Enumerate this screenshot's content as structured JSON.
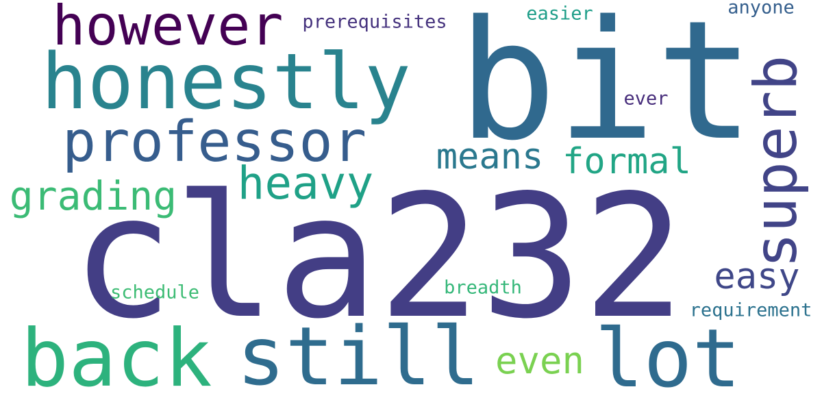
{
  "words": [
    {
      "key": "cla232",
      "text": "cla232",
      "color": "#433e85"
    },
    {
      "key": "bit",
      "text": "bit",
      "color": "#30698e"
    },
    {
      "key": "honestly",
      "text": "honestly",
      "color": "#29838e"
    },
    {
      "key": "however",
      "text": "however",
      "color": "#440154"
    },
    {
      "key": "professor",
      "text": "professor",
      "color": "#365d8d"
    },
    {
      "key": "back",
      "text": "back",
      "color": "#2db27d"
    },
    {
      "key": "still",
      "text": "still",
      "color": "#2f6c8e"
    },
    {
      "key": "lot",
      "text": "lot",
      "color": "#2f6b8e"
    },
    {
      "key": "superb",
      "text": "superb",
      "color": "#414487"
    },
    {
      "key": "heavy",
      "text": "heavy",
      "color": "#1fa187"
    },
    {
      "key": "grading",
      "text": "grading",
      "color": "#3bbb75"
    },
    {
      "key": "means",
      "text": "means",
      "color": "#2a788e"
    },
    {
      "key": "formal",
      "text": "formal",
      "color": "#21a585"
    },
    {
      "key": "easy",
      "text": "easy",
      "color": "#3f4788"
    },
    {
      "key": "even",
      "text": "even",
      "color": "#7ad151"
    },
    {
      "key": "prerequisites",
      "text": "prerequisites",
      "color": "#46337e"
    },
    {
      "key": "easier",
      "text": "easier",
      "color": "#1f9e89"
    },
    {
      "key": "anyone",
      "text": "anyone",
      "color": "#355f8d"
    },
    {
      "key": "ever",
      "text": "ever",
      "color": "#472d7b"
    },
    {
      "key": "schedule",
      "text": "schedule",
      "color": "#3dbc74"
    },
    {
      "key": "breadth",
      "text": "breadth",
      "color": "#35b779"
    },
    {
      "key": "requirement",
      "text": "requirement",
      "color": "#2c728e"
    }
  ]
}
